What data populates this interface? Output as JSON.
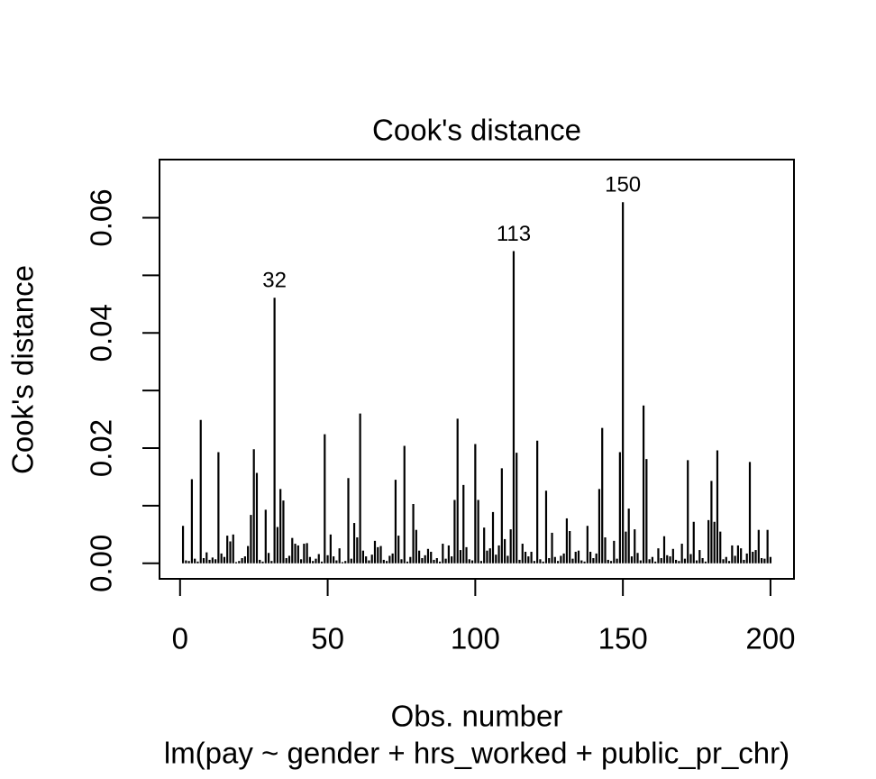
{
  "chart_data": {
    "type": "histogram-line",
    "title": "Cook's distance",
    "xlabel": "Obs. number",
    "ylabel": "Cook's distance",
    "subtitle": "lm(pay ~ gender + hrs_worked + public_pr_chr)",
    "xlim": [
      -6.96,
      207.96
    ],
    "ylim": [
      -0.0027,
      0.0701
    ],
    "xticks": [
      0,
      50,
      100,
      150,
      200
    ],
    "yticks": [
      {
        "value": 0,
        "label": "0.00"
      },
      {
        "value": 0.01,
        "label": null
      },
      {
        "value": 0.02,
        "label": "0.02"
      },
      {
        "value": 0.03,
        "label": null
      },
      {
        "value": 0.04,
        "label": "0.04"
      },
      {
        "value": 0.05,
        "label": null
      },
      {
        "value": 0.06,
        "label": "0.06"
      }
    ],
    "color": "#000000",
    "point_labels": [
      {
        "x": 32,
        "label": "32"
      },
      {
        "x": 113,
        "label": "113"
      },
      {
        "x": 150,
        "label": "150"
      }
    ],
    "x": [
      1,
      2,
      3,
      4,
      5,
      6,
      7,
      8,
      9,
      10,
      11,
      12,
      13,
      14,
      15,
      16,
      17,
      18,
      19,
      20,
      21,
      22,
      23,
      24,
      25,
      26,
      27,
      28,
      29,
      30,
      31,
      32,
      33,
      34,
      35,
      36,
      37,
      38,
      39,
      40,
      41,
      42,
      43,
      44,
      45,
      46,
      47,
      48,
      49,
      50,
      51,
      52,
      53,
      54,
      55,
      56,
      57,
      58,
      59,
      60,
      61,
      62,
      63,
      64,
      65,
      66,
      67,
      68,
      69,
      70,
      71,
      72,
      73,
      74,
      75,
      76,
      77,
      78,
      79,
      80,
      81,
      82,
      83,
      84,
      85,
      86,
      87,
      88,
      89,
      90,
      91,
      92,
      93,
      94,
      95,
      96,
      97,
      98,
      99,
      100,
      101,
      102,
      103,
      104,
      105,
      106,
      107,
      108,
      109,
      110,
      111,
      112,
      113,
      114,
      115,
      116,
      117,
      118,
      119,
      120,
      121,
      122,
      123,
      124,
      125,
      126,
      127,
      128,
      129,
      130,
      131,
      132,
      133,
      134,
      135,
      136,
      137,
      138,
      139,
      140,
      141,
      142,
      143,
      144,
      145,
      146,
      147,
      148,
      149,
      150,
      151,
      152,
      153,
      154,
      155,
      156,
      157,
      158,
      159,
      160,
      161,
      162,
      163,
      164,
      165,
      166,
      167,
      168,
      169,
      170,
      171,
      172,
      173,
      174,
      175,
      176,
      177,
      178,
      179,
      180,
      181,
      182,
      183,
      184,
      185,
      186,
      187,
      188,
      189,
      190,
      191,
      192,
      193,
      194,
      195,
      196,
      197,
      198,
      199,
      200
    ],
    "values": [
      0.0065,
      0.0005,
      0.0004,
      0.0146,
      0.0008,
      0.0003,
      0.0249,
      0.0009,
      0.0019,
      0.0006,
      0.001,
      0.0007,
      0.0193,
      0.0017,
      0.0011,
      0.0048,
      0.0038,
      0.005,
      0.0002,
      0.0004,
      0.0009,
      0.0012,
      0.003,
      0.0084,
      0.0198,
      0.0157,
      0.0006,
      0.0003,
      0.0093,
      0.0018,
      0.0004,
      0.0461,
      0.0063,
      0.0129,
      0.0109,
      0.0009,
      0.0013,
      0.0044,
      0.0034,
      0.0031,
      0.0007,
      0.0034,
      0.0035,
      0.0011,
      0.0004,
      0.0008,
      0.0016,
      0.0003,
      0.0224,
      0.0014,
      0.005,
      0.0012,
      0.0005,
      0.0026,
      0.0002,
      0.0004,
      0.0148,
      0.0008,
      0.007,
      0.0045,
      0.026,
      0.0022,
      0.0012,
      0.0005,
      0.0015,
      0.0039,
      0.0028,
      0.003,
      0.0006,
      0.0004,
      0.0013,
      0.0017,
      0.0145,
      0.0048,
      0.0007,
      0.0204,
      0.0003,
      0.0011,
      0.0103,
      0.0058,
      0.0022,
      0.0009,
      0.0014,
      0.0025,
      0.002,
      0.0006,
      0.0009,
      0.0003,
      0.0034,
      0.0008,
      0.0031,
      0.0012,
      0.011,
      0.0251,
      0.0023,
      0.0136,
      0.0028,
      0.0007,
      0.0005,
      0.0207,
      0.011,
      0.0004,
      0.0062,
      0.0022,
      0.0026,
      0.0089,
      0.0015,
      0.0031,
      0.0165,
      0.0042,
      0.0013,
      0.0059,
      0.0542,
      0.0192,
      0.0006,
      0.0034,
      0.002,
      0.0012,
      0.002,
      0.0004,
      0.0213,
      0.0007,
      0.0003,
      0.0126,
      0.0009,
      0.0053,
      0.0011,
      0.0004,
      0.0013,
      0.0017,
      0.0078,
      0.0056,
      0.0008,
      0.002,
      0.0022,
      0.0005,
      0.0003,
      0.0065,
      0.002,
      0.0009,
      0.0017,
      0.0129,
      0.0235,
      0.0045,
      0.0006,
      0.0004,
      0.0039,
      0.0008,
      0.0193,
      0.0627,
      0.0055,
      0.0095,
      0.0012,
      0.0059,
      0.0018,
      0.0005,
      0.0274,
      0.0181,
      0.0007,
      0.0011,
      0.0003,
      0.0026,
      0.0009,
      0.0047,
      0.0014,
      0.0012,
      0.0025,
      0.0006,
      0.0004,
      0.0034,
      0.0008,
      0.0179,
      0.0016,
      0.0072,
      0.0005,
      0.0023,
      0.0009,
      0.0003,
      0.0075,
      0.0143,
      0.0072,
      0.0196,
      0.0055,
      0.0007,
      0.0011,
      0.0004,
      0.0031,
      0.0013,
      0.0031,
      0.0026,
      0.0006,
      0.0017,
      0.0176,
      0.002,
      0.0023,
      0.0058,
      0.0009,
      0.0008,
      0.0058,
      0.0011
    ]
  }
}
